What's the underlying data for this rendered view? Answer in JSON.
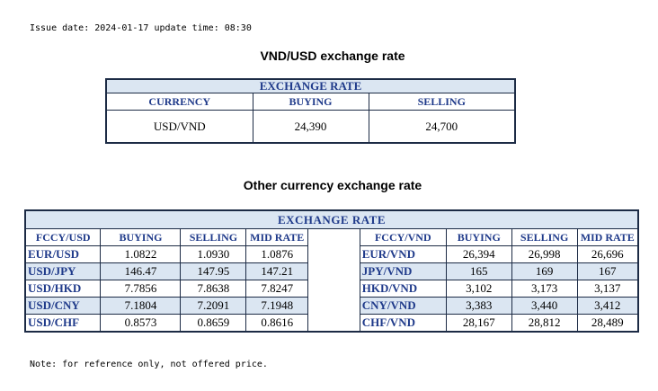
{
  "header": {
    "issue_line": "Issue date: 2024-01-17 update time: 08:30"
  },
  "section1": {
    "heading": "VND/USD exchange rate",
    "table_title": "EXCHANGE RATE",
    "columns": [
      "CURRENCY",
      "BUYING",
      "SELLING"
    ],
    "row": {
      "currency": "USD/VND",
      "buying": "24,390",
      "selling": "24,700"
    }
  },
  "section2": {
    "heading": "Other currency exchange rate",
    "table_title": "EXCHANGE  RATE",
    "left_columns": [
      "FCCY/USD",
      "BUYING",
      "SELLING",
      "MID RATE"
    ],
    "right_columns": [
      "FCCY/VND",
      "BUYING",
      "SELLING",
      "MID RATE"
    ],
    "rows": [
      {
        "l_pair": "EUR/USD",
        "l_buy": "1.0822",
        "l_sell": "1.0930",
        "l_mid": "1.0876",
        "r_pair": "EUR/VND",
        "r_buy": "26,394",
        "r_sell": "26,998",
        "r_mid": "26,696"
      },
      {
        "l_pair": "USD/JPY",
        "l_buy": "146.47",
        "l_sell": "147.95",
        "l_mid": "147.21",
        "r_pair": "JPY/VND",
        "r_buy": "165",
        "r_sell": "169",
        "r_mid": "167"
      },
      {
        "l_pair": "USD/HKD",
        "l_buy": "7.7856",
        "l_sell": "7.8638",
        "l_mid": "7.8247",
        "r_pair": "HKD/VND",
        "r_buy": "3,102",
        "r_sell": "3,173",
        "r_mid": "3,137"
      },
      {
        "l_pair": "USD/CNY",
        "l_buy": "7.1804",
        "l_sell": "7.2091",
        "l_mid": "7.1948",
        "r_pair": "CNY/VND",
        "r_buy": "3,383",
        "r_sell": "3,440",
        "r_mid": "3,412"
      },
      {
        "l_pair": "USD/CHF",
        "l_buy": "0.8573",
        "l_sell": "0.8659",
        "l_mid": "0.8616",
        "r_pair": "CHF/VND",
        "r_buy": "28,167",
        "r_sell": "28,812",
        "r_mid": "28,489"
      }
    ]
  },
  "footer": {
    "note": "Note: for reference only, not offered price."
  },
  "colors": {
    "header_fill": "#dbe6f2",
    "header_text": "#1f3a8a",
    "border": "#1c2b45"
  }
}
